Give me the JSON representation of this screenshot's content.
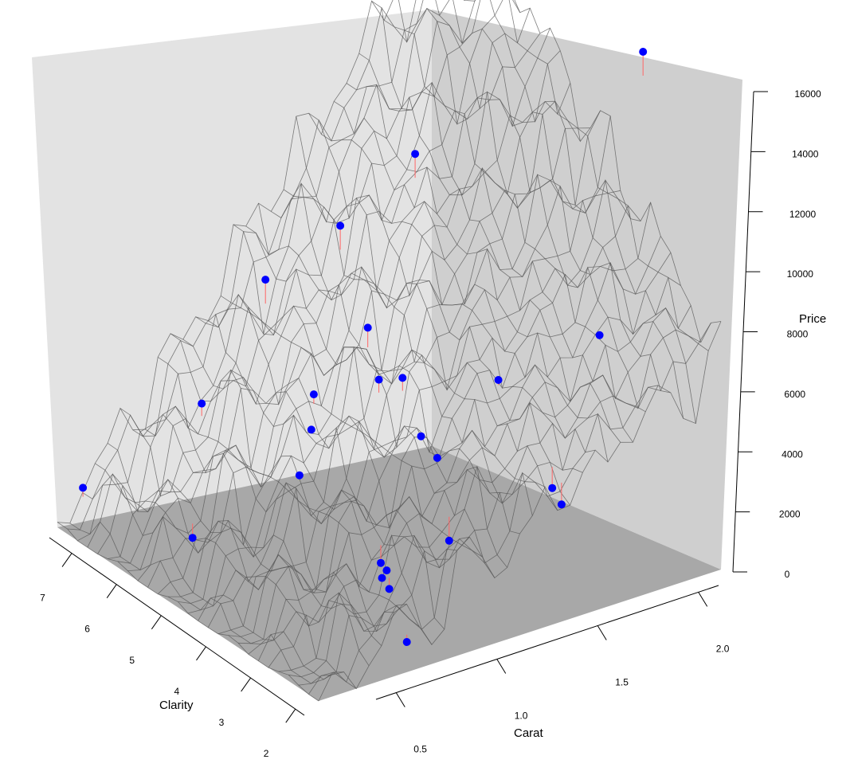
{
  "chart_data": {
    "type": "scatter",
    "subtype": "3d-surface-with-points",
    "title": "",
    "x_axis": {
      "label": "Carat",
      "ticks": [
        0.5,
        1.0,
        1.5,
        2.0
      ],
      "tick_labels": [
        "0.5",
        "1.0",
        "1.5",
        "2.0"
      ],
      "range": [
        0.4,
        2.1
      ]
    },
    "y_axis": {
      "label": "Clarity",
      "ticks": [
        2,
        3,
        4,
        5,
        6,
        7
      ],
      "tick_labels": [
        "2",
        "3",
        "4",
        "5",
        "6",
        "7"
      ],
      "range": [
        1.8,
        7.5
      ]
    },
    "z_axis": {
      "label": "Price",
      "ticks": [
        0,
        2000,
        4000,
        6000,
        8000,
        10000,
        12000,
        14000,
        16000
      ],
      "tick_labels": [
        "0",
        "2000",
        "4000",
        "6000",
        "8000",
        "10000",
        "12000",
        "14000",
        "16000"
      ],
      "range": [
        0,
        16000
      ]
    },
    "points": [
      {
        "carat": 0.45,
        "clarity": 7.2,
        "price": 1500
      },
      {
        "carat": 0.7,
        "clarity": 6.1,
        "price": 300
      },
      {
        "carat": 0.85,
        "clarity": 2.2,
        "price": 400
      },
      {
        "carat": 0.9,
        "clarity": 3.0,
        "price": 1600
      },
      {
        "carat": 0.92,
        "clarity": 3.0,
        "price": 1800
      },
      {
        "carat": 0.95,
        "clarity": 3.1,
        "price": 1000
      },
      {
        "carat": 1.05,
        "clarity": 3.8,
        "price": 900
      },
      {
        "carat": 0.7,
        "clarity": 5.9,
        "price": 5000
      },
      {
        "carat": 0.9,
        "clarity": 4.8,
        "price": 3200
      },
      {
        "carat": 0.95,
        "clarity": 4.8,
        "price": 4600
      },
      {
        "carat": 0.98,
        "clarity": 4.9,
        "price": 5600
      },
      {
        "carat": 0.95,
        "clarity": 5.8,
        "price": 8600
      },
      {
        "carat": 1.15,
        "clarity": 4.6,
        "price": 7700
      },
      {
        "carat": 1.1,
        "clarity": 4.1,
        "price": 6600
      },
      {
        "carat": 1.2,
        "clarity": 4.1,
        "price": 6400
      },
      {
        "carat": 1.22,
        "clarity": 3.8,
        "price": 4700
      },
      {
        "carat": 1.25,
        "clarity": 3.6,
        "price": 4100
      },
      {
        "carat": 1.3,
        "clarity": 3.6,
        "price": 1200
      },
      {
        "carat": 1.15,
        "clarity": 5.2,
        "price": 10500
      },
      {
        "carat": 1.45,
        "clarity": 3.3,
        "price": 6500
      },
      {
        "carat": 1.6,
        "clarity": 2.9,
        "price": 2900
      },
      {
        "carat": 1.62,
        "clarity": 2.8,
        "price": 2400
      },
      {
        "carat": 1.35,
        "clarity": 4.6,
        "price": 13000
      },
      {
        "carat": 1.8,
        "clarity": 2.9,
        "price": 7500
      },
      {
        "carat": 2.1,
        "clarity": 3.5,
        "price": 15600
      }
    ],
    "point_color": "#0000ff",
    "surface_color": "#555555",
    "residual_color": "#ff6666",
    "grid": false
  }
}
